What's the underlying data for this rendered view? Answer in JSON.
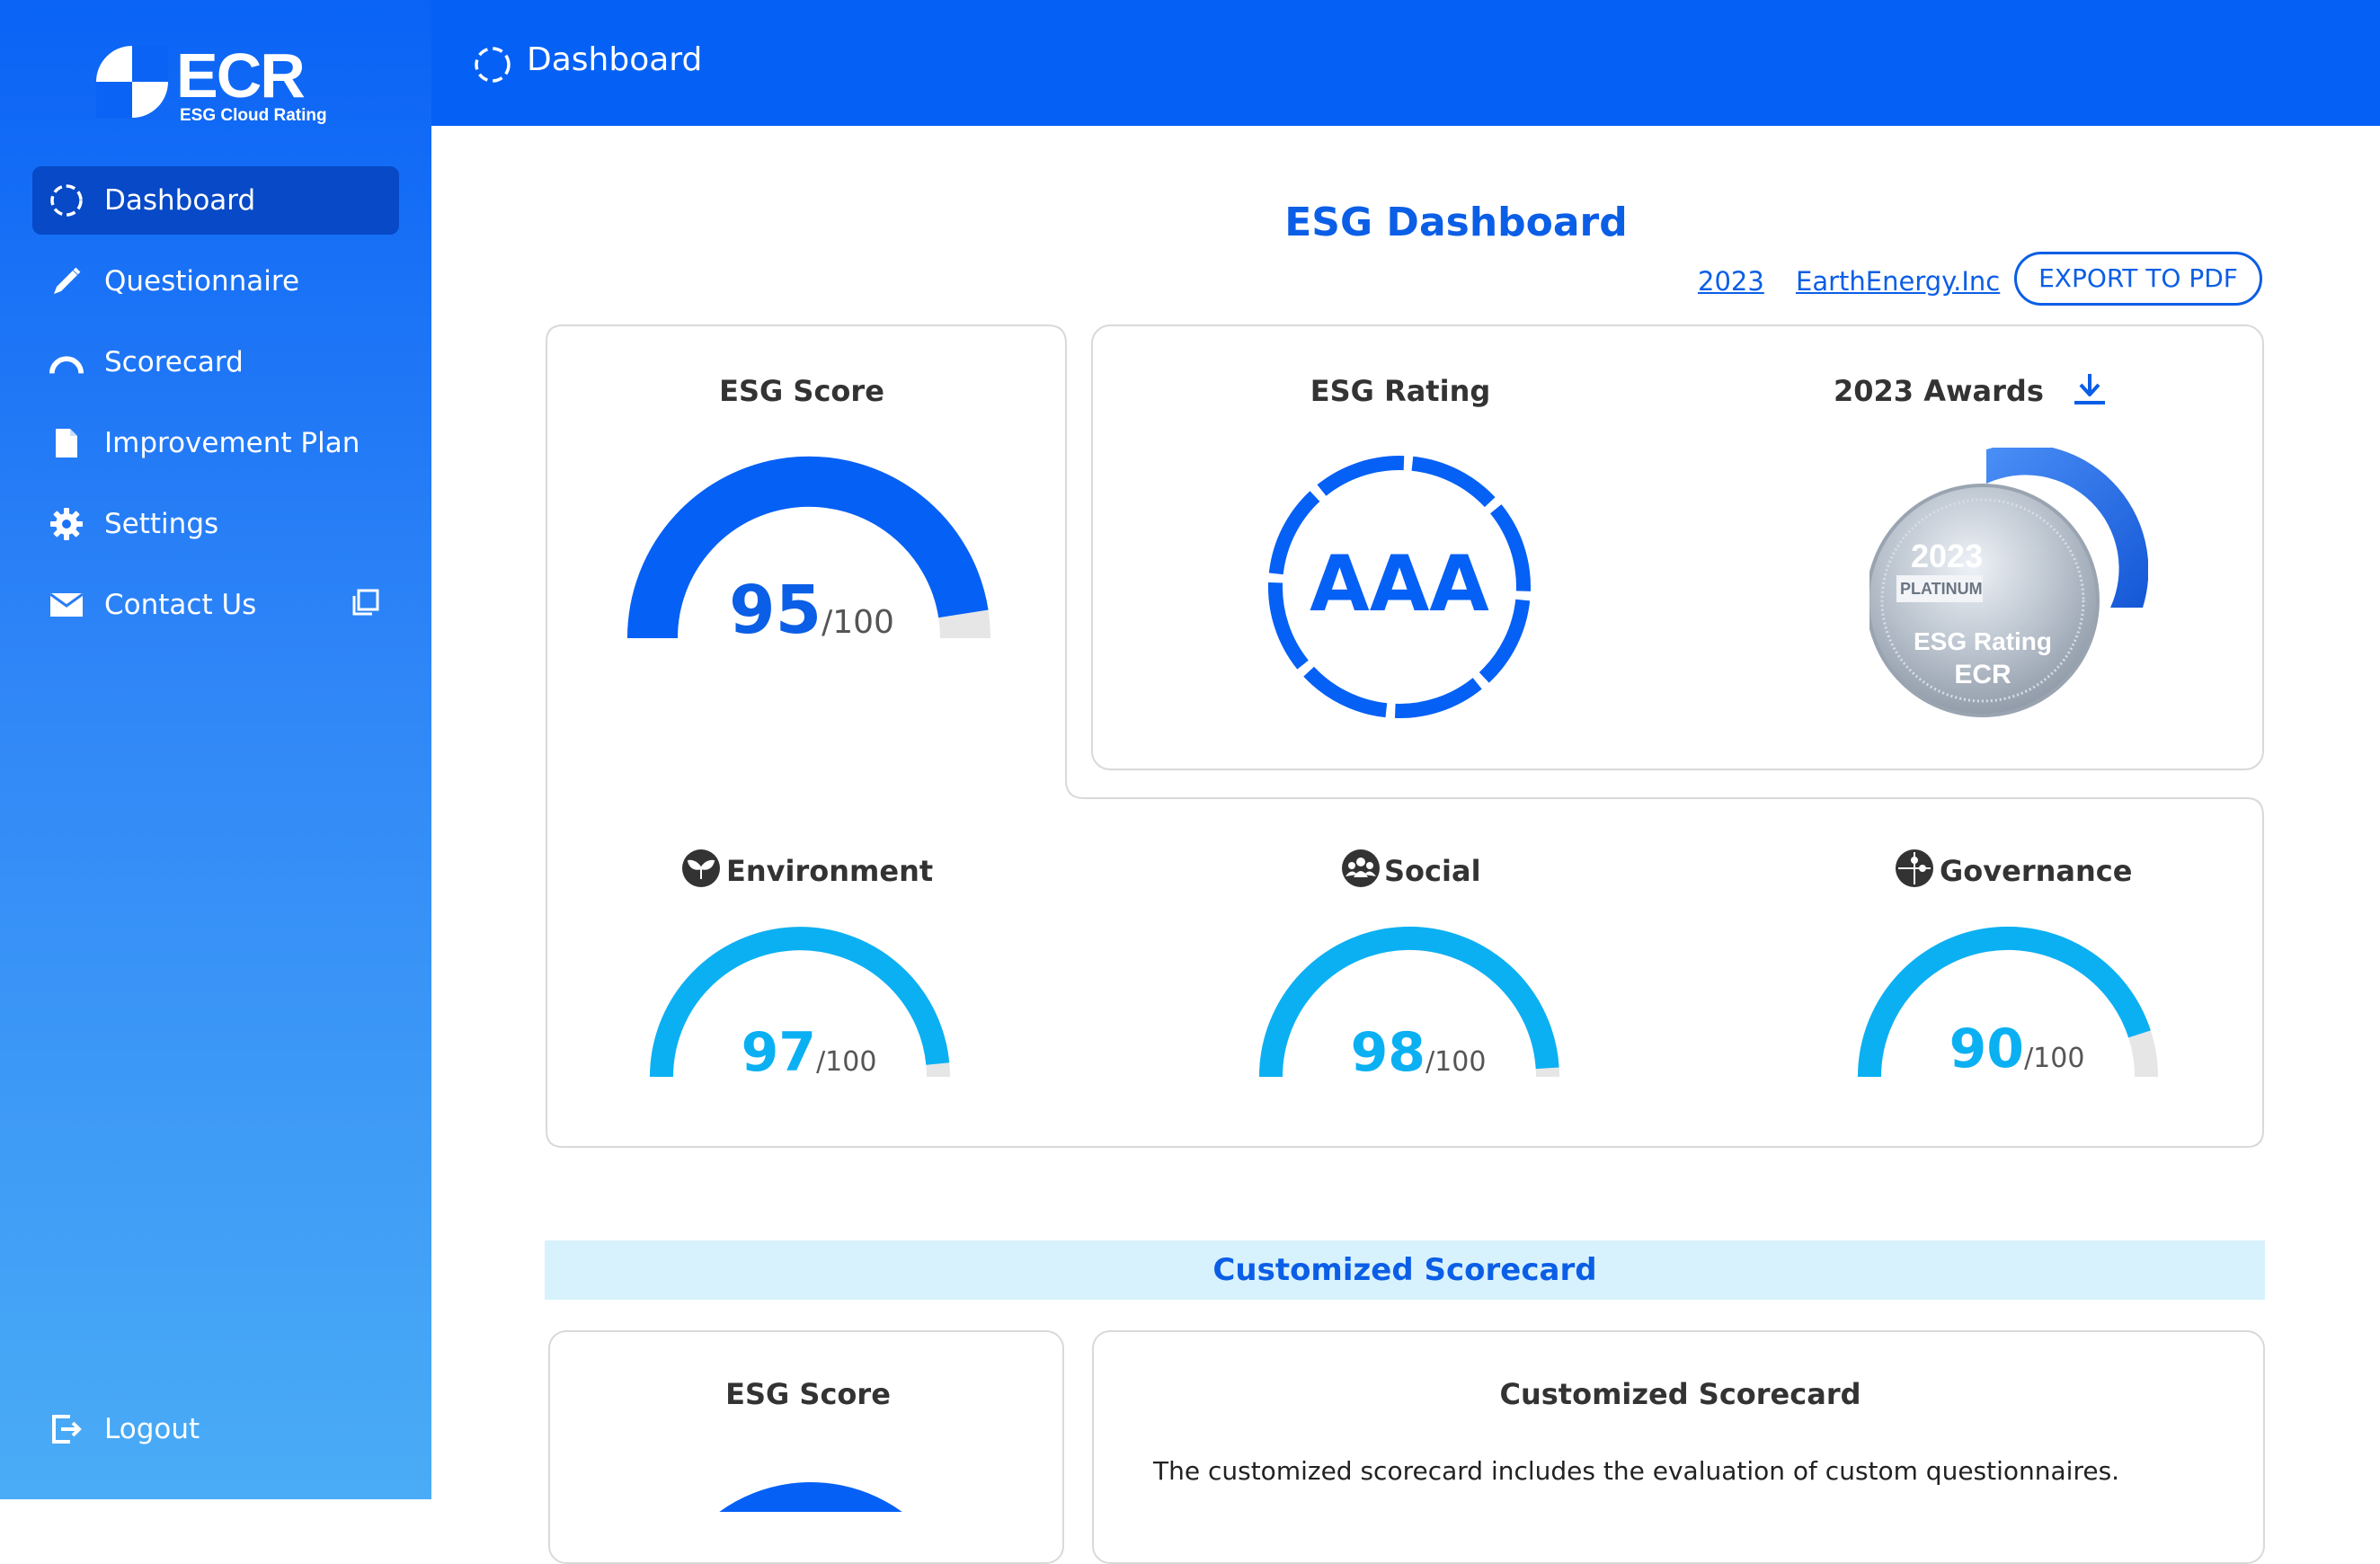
{
  "brand": {
    "name": "ECR",
    "tagline": "ESG Cloud Rating"
  },
  "sidebar": {
    "items": [
      {
        "label": "Dashboard",
        "icon": "dashboard-circle-icon",
        "active": true
      },
      {
        "label": "Questionnaire",
        "icon": "pencil-icon"
      },
      {
        "label": "Scorecard",
        "icon": "gauge-arc-icon"
      },
      {
        "label": "Improvement Plan",
        "icon": "document-icon"
      },
      {
        "label": "Settings",
        "icon": "gear-icon"
      },
      {
        "label": "Contact Us",
        "icon": "envelope-icon",
        "extra_icon": "copy-window-icon"
      }
    ],
    "logout": {
      "label": "Logout",
      "icon": "logout-icon"
    }
  },
  "topbar": {
    "title": "Dashboard"
  },
  "main": {
    "title": "ESG Dashboard",
    "year_link": "2023",
    "company_link": "EarthEnergy.Inc",
    "export_label": "EXPORT TO PDF",
    "esg_score": {
      "label": "ESG Score",
      "value": "95",
      "max": "/100",
      "fraction": 0.95
    },
    "esg_rating": {
      "label": "ESG Rating",
      "value": "AAA"
    },
    "awards": {
      "label": "2023 Awards",
      "download_icon": "download-icon",
      "medal": {
        "year": "2023",
        "tier": "PLATINUM",
        "line1": "ESG Rating",
        "line2": "ECR"
      }
    },
    "pillars": [
      {
        "label": "Environment",
        "icon": "leaf-icon",
        "value": "97",
        "max": "/100",
        "fraction": 0.97
      },
      {
        "label": "Social",
        "icon": "people-icon",
        "value": "98",
        "max": "/100",
        "fraction": 0.98
      },
      {
        "label": "Governance",
        "icon": "puzzle-icon",
        "value": "90",
        "max": "/100",
        "fraction": 0.9
      }
    ],
    "customized_bar": "Customized Scorecard",
    "bottom_left": {
      "label": "ESG Score"
    },
    "bottom_right": {
      "label": "Customized Scorecard",
      "description": "The customized scorecard includes the evaluation of custom questionnaires."
    }
  },
  "colors": {
    "primary": "#0560f6",
    "sidebar_active": "#0749c6",
    "pillar": "#0bb0f3",
    "track": "#e6e6e6"
  }
}
